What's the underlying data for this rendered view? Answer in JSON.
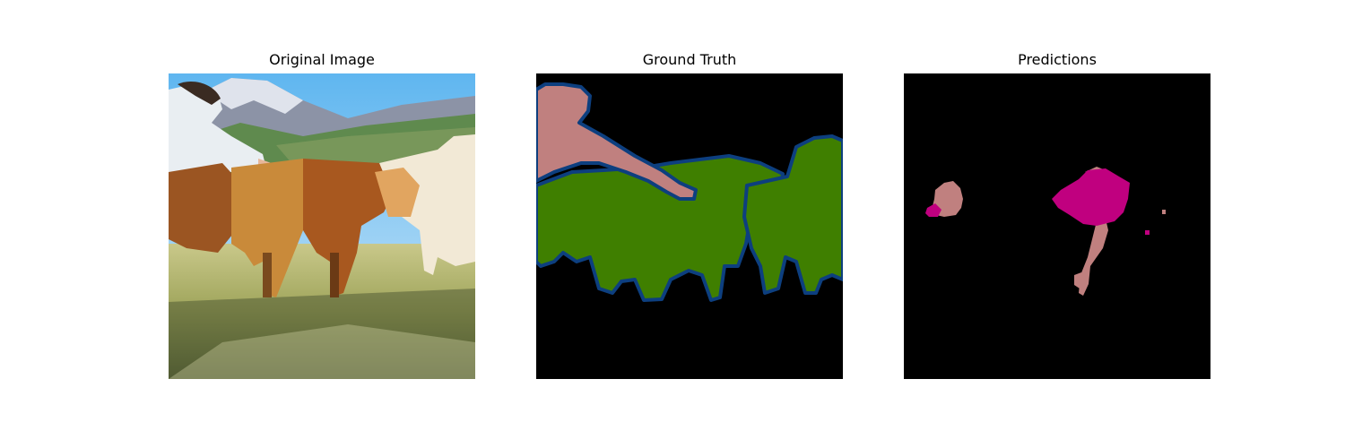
{
  "panels": [
    {
      "title": "Original Image",
      "content": "photo"
    },
    {
      "title": "Ground Truth",
      "content": "segmentation-mask"
    },
    {
      "title": "Predictions",
      "content": "segmentation-mask"
    }
  ],
  "colors": {
    "background": "#ffffff",
    "mask_background": "#000000",
    "class_person": "#c0807f",
    "class_cow": "#3f7f00",
    "class_boundary": "#0d3f7f",
    "class_predicted_other": "#c0007f"
  }
}
